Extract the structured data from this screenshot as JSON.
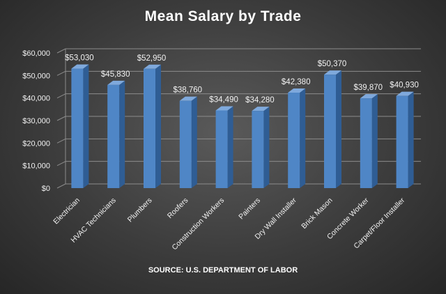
{
  "chart_data": {
    "type": "bar",
    "title": "Mean Salary by Trade",
    "source": "SOURCE: U.S. DEPARTMENT OF LABOR",
    "categories": [
      "Electrician",
      "HVAC Technicians",
      "Plumbers",
      "Roofers",
      "Construction Workers",
      "Painters",
      "Dry Wall Installer",
      "Brick Mason",
      "Concrete Worker",
      "Carpet/Floor Installer"
    ],
    "values": [
      53030,
      45830,
      52950,
      38760,
      34490,
      34280,
      42380,
      50370,
      39870,
      40930
    ],
    "data_labels": [
      "$53,030",
      "$45,830",
      "$52,950",
      "$38,760",
      "$34,490",
      "$34,280",
      "$42,380",
      "$50,370",
      "$39,870",
      "$40,930"
    ],
    "y_ticks": [
      0,
      10000,
      20000,
      30000,
      40000,
      50000,
      60000
    ],
    "y_tick_labels": [
      "$0",
      "$10,000",
      "$20,000",
      "$30,000",
      "$40,000",
      "$50,000",
      "$60,000"
    ],
    "ylim": [
      0,
      60000
    ],
    "grid": true,
    "legend": "none",
    "colors": {
      "bar": "#4f86c6",
      "bar_side": "#2f5d94",
      "bar_top": "#7fa9dc",
      "grid": "#8c8c8c",
      "text": "#f2f2f2"
    }
  }
}
